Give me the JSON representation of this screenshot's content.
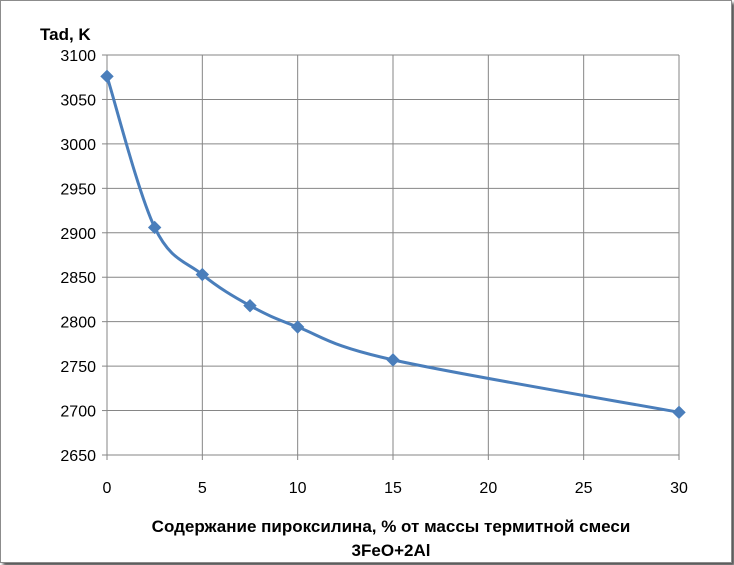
{
  "chart_data": {
    "type": "line",
    "title": "",
    "ylabel": "Tad, K",
    "xlabel_lines": [
      "Содержание пироксилина, % от массы термитной смеси",
      "3FeO+2Al"
    ],
    "x": [
      0,
      2.5,
      5,
      7.5,
      10,
      15,
      30
    ],
    "series": [
      {
        "values": [
          3076,
          2906,
          2853,
          2818,
          2794,
          2757,
          2698
        ],
        "color": "#4a7ebb",
        "marker": "diamond"
      }
    ],
    "xlim": [
      0,
      30
    ],
    "ylim": [
      2650,
      3100
    ],
    "xticks": [
      0,
      5,
      10,
      15,
      20,
      25,
      30
    ],
    "yticks": [
      2650,
      2700,
      2750,
      2800,
      2850,
      2900,
      2950,
      3000,
      3050,
      3100
    ],
    "grid": true,
    "smooth": true
  }
}
